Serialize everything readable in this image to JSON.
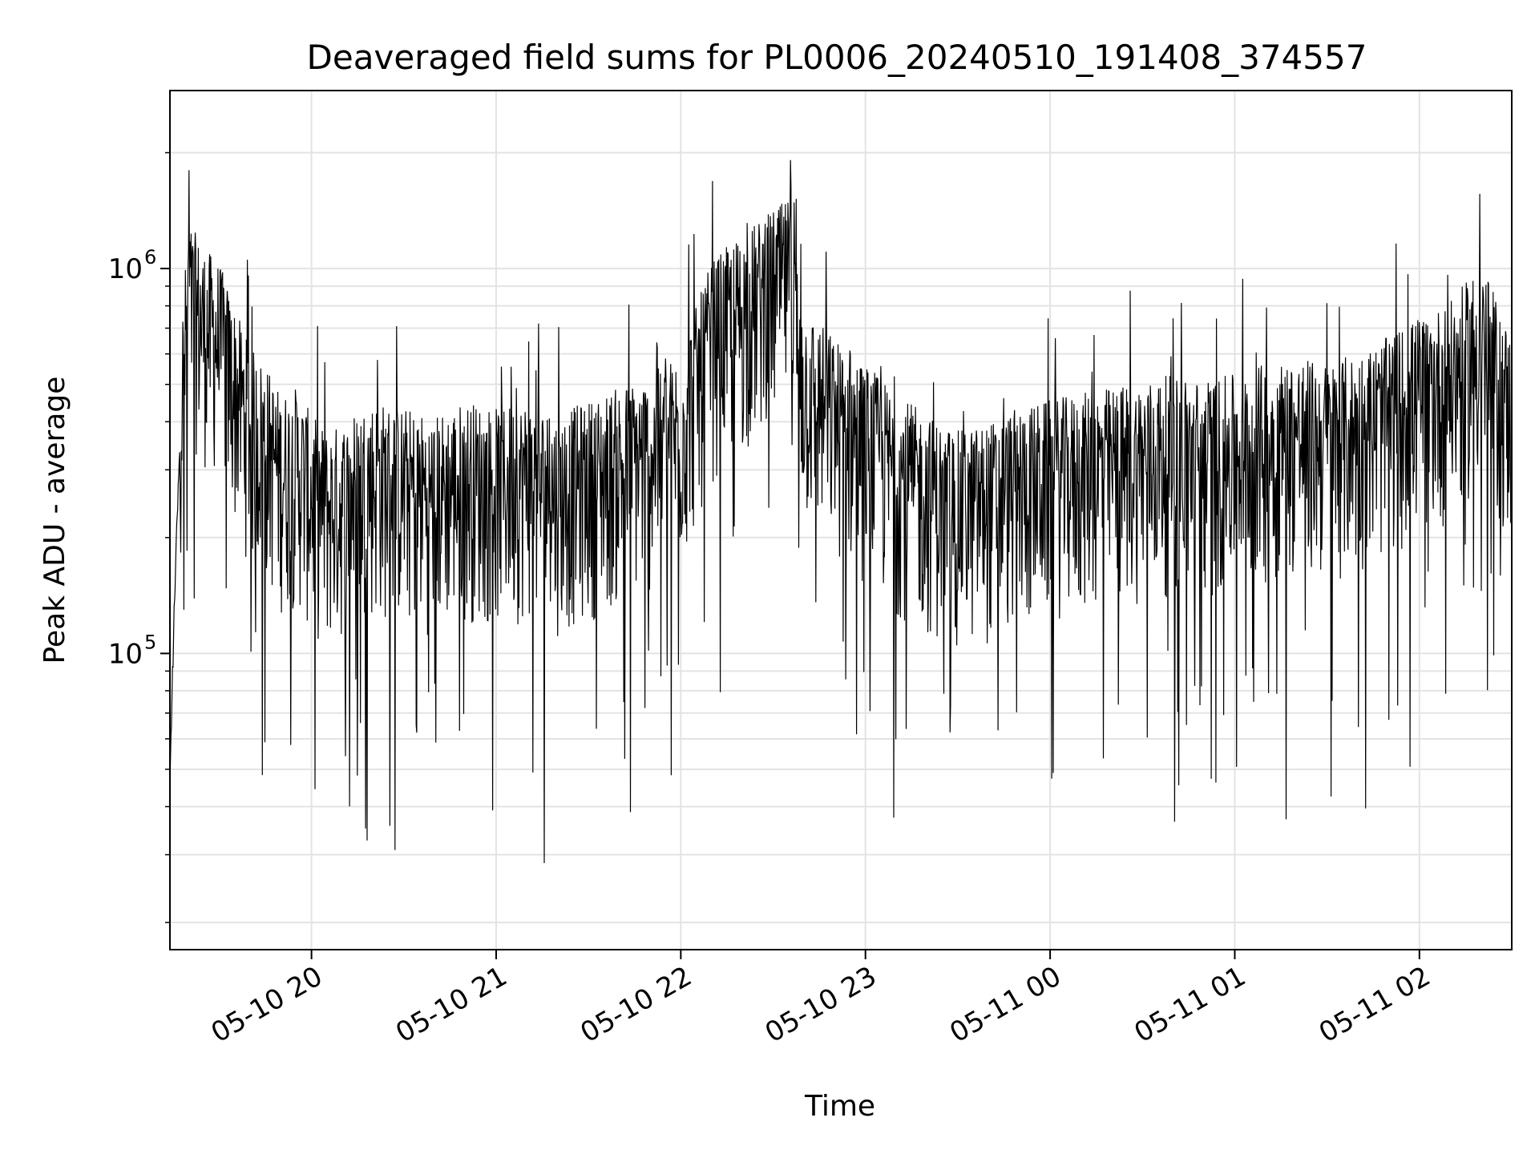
{
  "chart_data": {
    "type": "line",
    "title": "Deaveraged field sums for PL0006_20240510_191408_374557",
    "xlabel": "Time",
    "ylabel": "Peak ADU - average",
    "x_range": [
      "2024-05-10 19:14",
      "2024-05-11 02:30"
    ],
    "ylim": [
      17000,
      2900000
    ],
    "yscale": "log",
    "grid": true,
    "line_color": "#000000",
    "x_ticks": [
      {
        "label": "05-10 20",
        "value": "2024-05-10 20:00"
      },
      {
        "label": "05-10 21",
        "value": "2024-05-10 21:00"
      },
      {
        "label": "05-10 22",
        "value": "2024-05-10 22:00"
      },
      {
        "label": "05-10 23",
        "value": "2024-05-10 23:00"
      },
      {
        "label": "05-11 00",
        "value": "2024-05-11 00:00"
      },
      {
        "label": "05-11 01",
        "value": "2024-05-11 01:00"
      },
      {
        "label": "05-11 02",
        "value": "2024-05-11 02:00"
      }
    ],
    "y_ticks": [
      {
        "value": 100000,
        "base": "10",
        "exp": "5"
      },
      {
        "value": 1000000,
        "base": "10",
        "exp": "6"
      }
    ],
    "series": [
      {
        "x": [
          "2024-05-10 19:14",
          "2024-05-10 19:20",
          "2024-05-10 19:25",
          "2024-05-10 19:30",
          "2024-05-10 19:35",
          "2024-05-10 19:40",
          "2024-05-10 19:45",
          "2024-05-10 19:50",
          "2024-05-10 19:55",
          "2024-05-10 20:00",
          "2024-05-10 20:05",
          "2024-05-10 20:10",
          "2024-05-10 20:15",
          "2024-05-10 20:20",
          "2024-05-10 20:30",
          "2024-05-10 20:40",
          "2024-05-10 20:50",
          "2024-05-10 21:00",
          "2024-05-10 21:10",
          "2024-05-10 21:20",
          "2024-05-10 21:30",
          "2024-05-10 21:40",
          "2024-05-10 21:50",
          "2024-05-10 22:00",
          "2024-05-10 22:10",
          "2024-05-10 22:15",
          "2024-05-10 22:20",
          "2024-05-10 22:25",
          "2024-05-10 22:30",
          "2024-05-10 22:35",
          "2024-05-10 22:40",
          "2024-05-10 22:50",
          "2024-05-10 23:00",
          "2024-05-10 23:10",
          "2024-05-10 23:20",
          "2024-05-10 23:30",
          "2024-05-10 23:40",
          "2024-05-10 23:50",
          "2024-05-11 00:00",
          "2024-05-11 00:10",
          "2024-05-11 00:20",
          "2024-05-11 00:30",
          "2024-05-11 00:40",
          "2024-05-11 00:50",
          "2024-05-11 01:00",
          "2024-05-11 01:10",
          "2024-05-11 01:20",
          "2024-05-11 01:30",
          "2024-05-11 01:40",
          "2024-05-11 01:50",
          "2024-05-11 02:00",
          "2024-05-11 02:10",
          "2024-05-11 02:20",
          "2024-05-11 02:30"
        ],
        "y": [
          140000,
          700000,
          600000,
          550000,
          420000,
          330000,
          300000,
          250000,
          260000,
          220000,
          200000,
          210000,
          230000,
          240000,
          230000,
          220000,
          240000,
          230000,
          240000,
          220000,
          240000,
          260000,
          280000,
          320000,
          550000,
          600000,
          650000,
          700000,
          750000,
          800000,
          420000,
          350000,
          300000,
          250000,
          220000,
          200000,
          210000,
          230000,
          240000,
          250000,
          260000,
          270000,
          280000,
          270000,
          280000,
          300000,
          310000,
          300000,
          320000,
          350000,
          400000,
          430000,
          550000,
          350000
        ]
      }
    ]
  }
}
